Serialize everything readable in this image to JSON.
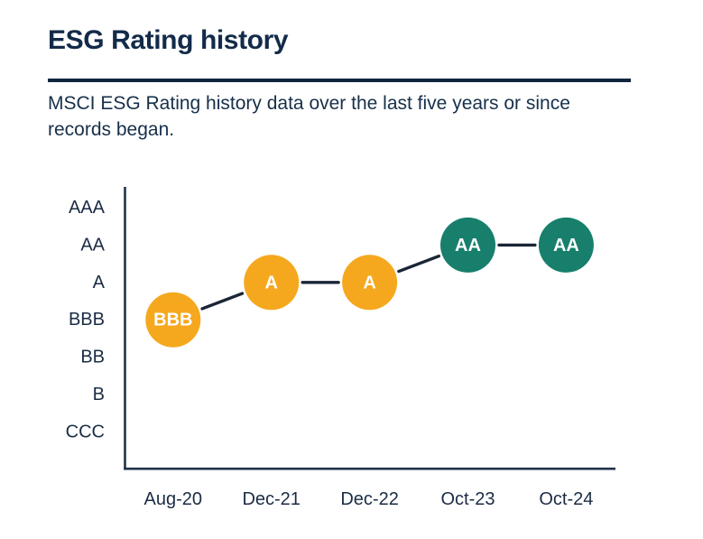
{
  "page": {
    "title": "ESG Rating history",
    "subtitle": "MSCI ESG Rating history data over the last five years or since records began."
  },
  "colors": {
    "title_navy": "#132B49",
    "divider_navy": "#11263E",
    "axis_navy": "#20324A",
    "connector_navy": "#1A2535",
    "tick_label_navy": "#1B2C44",
    "rating_yellow": "#F5A81E",
    "rating_teal": "#177F6B",
    "circle_text_white": "#FFFFFF",
    "background": "#FFFFFF"
  },
  "chart_data": {
    "type": "line",
    "title": "ESG Rating history",
    "subtitle": "MSCI ESG Rating history data over the last five years or since records began.",
    "y_levels": [
      "AAA",
      "AA",
      "A",
      "BBB",
      "BB",
      "B",
      "CCC"
    ],
    "x_labels": [
      "Aug-20",
      "Dec-21",
      "Dec-22",
      "Oct-23",
      "Oct-24"
    ],
    "points": [
      {
        "x": "Aug-20",
        "rating": "BBB",
        "color_key": "rating_yellow"
      },
      {
        "x": "Dec-21",
        "rating": "A",
        "color_key": "rating_yellow"
      },
      {
        "x": "Dec-22",
        "rating": "A",
        "color_key": "rating_yellow"
      },
      {
        "x": "Oct-23",
        "rating": "AA",
        "color_key": "rating_teal"
      },
      {
        "x": "Oct-24",
        "rating": "AA",
        "color_key": "rating_teal"
      }
    ],
    "grid": false,
    "legend": "none",
    "y_axis_order_note": "AAA best at top, CCC worst at bottom"
  }
}
